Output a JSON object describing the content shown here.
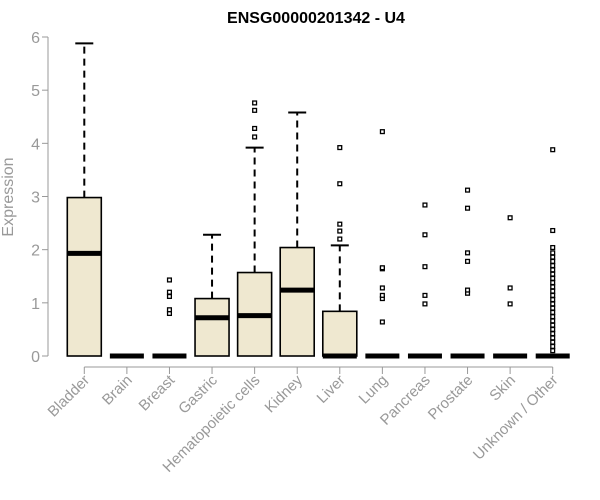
{
  "chart_data": {
    "type": "boxplot",
    "title": "ENSG00000201342 - U4",
    "xlabel": "",
    "ylabel": "Expression",
    "ylim": [
      0,
      6
    ],
    "yticks": [
      0,
      1,
      2,
      3,
      4,
      5,
      6
    ],
    "grid": false,
    "legend": "none",
    "colors": {
      "box_fill": "#efe8d0",
      "stroke": "#000000",
      "axis_text": "#999999",
      "outlier": "#000000"
    },
    "categories": [
      "Bladder",
      "Brain",
      "Breast",
      "Gastric",
      "Hematopoietic cells",
      "Kidney",
      "Liver",
      "Lung",
      "Pancreas",
      "Prostate",
      "Skin",
      "Unknown / Other"
    ],
    "boxes": [
      {
        "category": "Bladder",
        "whisker_low": 0,
        "q1": 0,
        "median": 1.93,
        "q3": 2.98,
        "whisker_high": 5.88,
        "outliers": []
      },
      {
        "category": "Brain",
        "whisker_low": 0,
        "q1": 0,
        "median": 0,
        "q3": 0,
        "whisker_high": 0,
        "outliers": []
      },
      {
        "category": "Breast",
        "whisker_low": 0,
        "q1": 0,
        "median": 0,
        "q3": 0,
        "whisker_high": 0,
        "outliers": [
          0.8,
          0.87,
          1.12,
          1.2,
          1.43
        ]
      },
      {
        "category": "Gastric",
        "whisker_low": 0,
        "q1": 0,
        "median": 0.72,
        "q3": 1.08,
        "whisker_high": 2.28,
        "outliers": []
      },
      {
        "category": "Hematopoietic cells",
        "whisker_low": 0,
        "q1": 0,
        "median": 0.76,
        "q3": 1.57,
        "whisker_high": 3.92,
        "outliers": [
          4.12,
          4.28,
          4.62,
          4.76
        ]
      },
      {
        "category": "Kidney",
        "whisker_low": 0,
        "q1": 0,
        "median": 1.24,
        "q3": 2.04,
        "whisker_high": 4.58,
        "outliers": []
      },
      {
        "category": "Liver",
        "whisker_low": 0,
        "q1": 0,
        "median": 0,
        "q3": 0.84,
        "whisker_high": 2.08,
        "outliers": [
          2.2,
          2.35,
          2.48,
          3.24,
          3.92
        ]
      },
      {
        "category": "Lung",
        "whisker_low": 0,
        "q1": 0,
        "median": 0,
        "q3": 0,
        "whisker_high": 0,
        "outliers": [
          0.64,
          1.08,
          1.14,
          1.28,
          1.64,
          1.66,
          4.22
        ]
      },
      {
        "category": "Pancreas",
        "whisker_low": 0,
        "q1": 0,
        "median": 0,
        "q3": 0,
        "whisker_high": 0,
        "outliers": [
          0.98,
          1.14,
          1.68,
          2.28,
          2.84
        ]
      },
      {
        "category": "Prostate",
        "whisker_low": 0,
        "q1": 0,
        "median": 0,
        "q3": 0,
        "whisker_high": 0,
        "outliers": [
          1.18,
          1.24,
          1.78,
          1.94,
          2.78,
          3.12
        ]
      },
      {
        "category": "Skin",
        "whisker_low": 0,
        "q1": 0,
        "median": 0,
        "q3": 0,
        "whisker_high": 0,
        "outliers": [
          0.98,
          1.28,
          2.6
        ]
      },
      {
        "category": "Unknown / Other",
        "whisker_low": 0,
        "q1": 0,
        "median": 0,
        "q3": 0,
        "whisker_high": 0,
        "outliers": [
          0.1,
          0.18,
          0.26,
          0.34,
          0.42,
          0.5,
          0.58,
          0.66,
          0.74,
          0.82,
          0.9,
          0.98,
          1.06,
          1.14,
          1.22,
          1.3,
          1.38,
          1.46,
          1.54,
          1.62,
          1.7,
          1.78,
          1.86,
          1.94,
          2.04,
          2.36,
          3.88
        ]
      }
    ]
  }
}
